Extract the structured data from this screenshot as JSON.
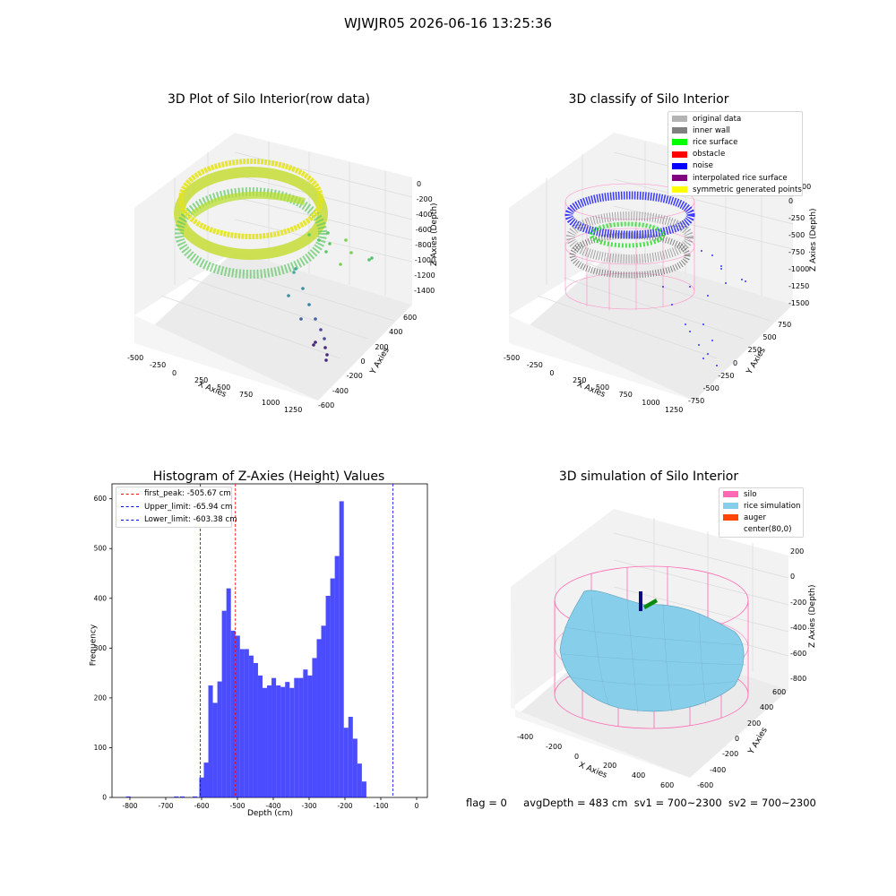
{
  "figure": {
    "suptitle": "WJWJR05 2026-06-16 13:25:36"
  },
  "panels": {
    "raw": {
      "title": "3D Plot of Silo Interior(row data)",
      "xlabel": "X Axies",
      "ylabel": "Y Axies",
      "zlabel": "Z Axies (Depth)",
      "xticks": [
        "-500",
        "-250",
        "0",
        "250",
        "500",
        "750",
        "1000",
        "1250"
      ],
      "yticks": [
        "600",
        "400",
        "200",
        "0",
        "-200",
        "-400",
        "-600"
      ],
      "zticks": [
        "0",
        "-200",
        "-400",
        "-600",
        "-800",
        "-1000",
        "-1200",
        "-1400"
      ]
    },
    "classify": {
      "title": "3D classify of Silo Interior",
      "xlabel": "X Axies",
      "ylabel": "Y Axies",
      "zlabel": "Z Axies (Depth)",
      "xticks": [
        "-500",
        "-250",
        "0",
        "250",
        "500",
        "750",
        "1000",
        "1250"
      ],
      "yticks": [
        "750",
        "500",
        "250",
        "0",
        "-250",
        "-500",
        "-750"
      ],
      "zticks": [
        "0",
        "-250",
        "-500",
        "-750",
        "-1000",
        "-1250",
        "-1500"
      ],
      "zlabel_partial": "00",
      "legend": [
        {
          "label": "original data",
          "color": "#b4b4b4"
        },
        {
          "label": "inner wall",
          "color": "#808080"
        },
        {
          "label": "rice surface",
          "color": "#00ff00"
        },
        {
          "label": "obstacle",
          "color": "#ff0000"
        },
        {
          "label": "noise",
          "color": "#0000ff"
        },
        {
          "label": "interpolated rice surface",
          "color": "#800080"
        },
        {
          "label": "symmetric generated points",
          "color": "#ffff00"
        }
      ]
    },
    "histogram": {
      "title": "Histogram of Z-Axies (Height) Values",
      "legend": [
        {
          "label": "first_peak: -505.67 cm",
          "color": "#ff0000"
        },
        {
          "label": "Upper_limit: -65.94 cm",
          "color": "#0000ff"
        },
        {
          "label": "Lower_limit: -603.38 cm",
          "color": "#0000ff"
        }
      ]
    },
    "simulation": {
      "title": "3D simulation of Silo Interior",
      "xlabel": "X Axies",
      "ylabel": "Y Axies",
      "zlabel": "Z Axies (Depth)",
      "xticks": [
        "-400",
        "-200",
        "0",
        "200",
        "400",
        "600"
      ],
      "yticks": [
        "600",
        "400",
        "200",
        "0",
        "-200",
        "-400",
        "-600"
      ],
      "zticks": [
        "200",
        "0",
        "-200",
        "-400",
        "-600",
        "-800"
      ],
      "legend": [
        {
          "label": "silo",
          "color": "#ff69b4"
        },
        {
          "label": "rice simulation",
          "color": "#87ceeb"
        },
        {
          "label": "auger",
          "color": "#ff4500"
        },
        {
          "label": "center(80,0)",
          "color": "#ffffff"
        }
      ]
    }
  },
  "footer": {
    "flag": "flag = 0",
    "avg": "avgDepth = 483 cm",
    "sv1": "sv1 = 700~2300",
    "sv2": "sv2 = 700~2300"
  },
  "chart_data": [
    {
      "type": "scatter",
      "title": "3D Plot of Silo Interior(row data)",
      "xlabel": "X Axies",
      "ylabel": "Y Axies",
      "zlabel": "Z Axies (Depth)",
      "xlim": [
        -550,
        1300
      ],
      "ylim": [
        -650,
        650
      ],
      "zlim": [
        -1500,
        50
      ]
    },
    {
      "type": "scatter",
      "title": "3D classify of Silo Interior",
      "xlabel": "X Axies",
      "ylabel": "Y Axies",
      "zlabel": "Z Axies (Depth)",
      "xlim": [
        -550,
        1300
      ],
      "ylim": [
        -800,
        800
      ],
      "zlim": [
        -1500,
        50
      ]
    },
    {
      "type": "bar",
      "title": "Histogram of Z-Axies (Height) Values",
      "xlabel": "Depth (cm)",
      "ylabel": "Frequency",
      "xlim": [
        -850,
        30
      ],
      "ylim": [
        0,
        630
      ],
      "xticks": [
        -800,
        -700,
        -600,
        -500,
        -400,
        -300,
        -200,
        -100,
        0
      ],
      "yticks": [
        0,
        100,
        200,
        300,
        400,
        500,
        600
      ],
      "bin_width": 12.6,
      "isolated_bins": [
        {
          "x": -811,
          "value": 2
        },
        {
          "x": -677,
          "value": 2
        },
        {
          "x": -660,
          "value": 2
        },
        {
          "x": -625,
          "value": 2
        }
      ],
      "bins_start": -606.4,
      "values": [
        40,
        70,
        225,
        190,
        233,
        375,
        420,
        335,
        325,
        298,
        298,
        285,
        270,
        245,
        220,
        225,
        240,
        225,
        222,
        232,
        220,
        240,
        240,
        257,
        245,
        280,
        318,
        345,
        405,
        440,
        485,
        595,
        140,
        162,
        118,
        68,
        32
      ],
      "lines": [
        {
          "name": "first_peak",
          "x": -505.67,
          "color": "#ff0000"
        },
        {
          "name": "Upper_limit",
          "x": -65.94,
          "color": "#0000ff"
        },
        {
          "name": "Lower_limit",
          "x": -603.38,
          "color": "#0000ff"
        }
      ]
    },
    {
      "type": "area",
      "title": "3D simulation of Silo Interior",
      "xlabel": "X Axies",
      "ylabel": "Y Axies",
      "zlabel": "Z Axies (Depth)",
      "xlim": [
        -520,
        700
      ],
      "ylim": [
        -650,
        650
      ],
      "zlim": [
        -850,
        300
      ]
    }
  ]
}
